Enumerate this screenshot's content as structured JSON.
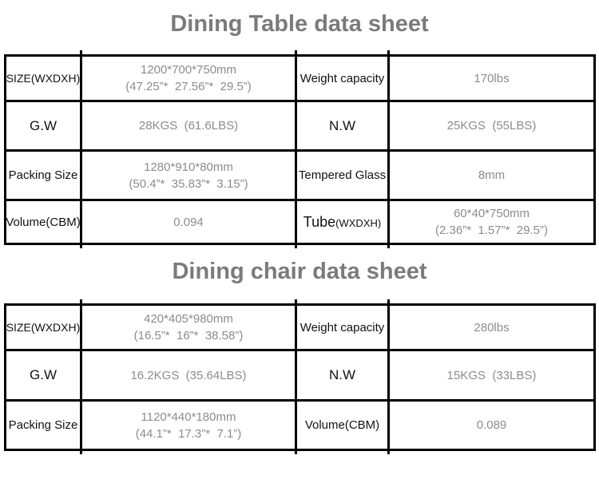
{
  "colors": {
    "border": "#000000",
    "label_text": "#121212",
    "value_text": "#8c8c8c",
    "title_text": "#7b7b7b",
    "background": "#ffffff"
  },
  "table1": {
    "title": "Dining Table data sheet",
    "rows": {
      "r1": {
        "label_left": "SIZE(WXDXH)",
        "value_left_l1": "1200*700*750mm",
        "value_left_l2": "(47.25”*  27.56”*  29.5”)",
        "label_right": "Weight capacity",
        "value_right": "170lbs"
      },
      "r2": {
        "label_left": "G.W",
        "value_left": "28KGS  (61.6LBS)",
        "label_right": "N.W",
        "value_right": "25KGS  (55LBS)"
      },
      "r3": {
        "label_left": "Packing Size",
        "value_left_l1": "1280*910*80mm",
        "value_left_l2": "(50.4”*  35.83”*  3.15”)",
        "label_right": "Tempered Glass",
        "value_right": "8mm"
      },
      "r4": {
        "label_left": "Volume(CBM)",
        "value_left": "0.094",
        "label_right": "Tube",
        "label_right_suffix": "(WXDXH)",
        "value_right_l1": "60*40*750mm",
        "value_right_l2": "(2.36”*  1.57”*  29.5”)"
      }
    }
  },
  "table2": {
    "title": "Dining chair data sheet",
    "rows": {
      "r1": {
        "label_left": "SIZE(WXDXH)",
        "value_left_l1": "420*405*980mm",
        "value_left_l2": "(16.5”*  16”*  38.58”)",
        "label_right": "Weight capacity",
        "value_right": "280lbs"
      },
      "r2": {
        "label_left": "G.W",
        "value_left": "16.2KGS  (35.64LBS)",
        "label_right": "N.W",
        "value_right": "15KGS  (33LBS)"
      },
      "r3": {
        "label_left": "Packing Size",
        "value_left_l1": "1120*440*180mm",
        "value_left_l2": "(44.1”*  17.3”*  7.1”)",
        "label_right": "Volume(CBM)",
        "value_right": "0.089"
      }
    }
  }
}
